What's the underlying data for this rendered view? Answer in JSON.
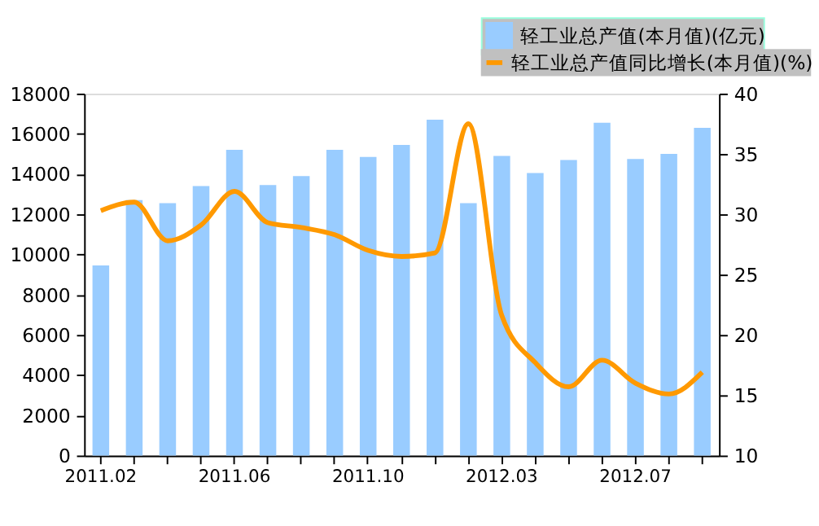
{
  "chart_data": {
    "type": "bar",
    "categories": [
      "2011.02",
      null,
      null,
      null,
      "2011.06",
      null,
      null,
      null,
      "2011.10",
      null,
      null,
      null,
      "2012.03",
      null,
      null,
      null,
      "2012.07",
      null,
      null
    ],
    "series": [
      {
        "name": "轻工业总产值(本月值)(亿元)",
        "color": "#99ccff",
        "values": [
          9450,
          12700,
          12550,
          13400,
          15200,
          13450,
          13900,
          15200,
          14850,
          15450,
          16700,
          12550,
          14900,
          14050,
          14700,
          16550,
          14750,
          15000,
          16300
        ]
      },
      {
        "name": "轻工业总产值同比增长(本月值)(%)",
        "type": "line",
        "axis": "y2",
        "color": "#ff9900",
        "values": [
          30.3,
          31.0,
          27.8,
          29.1,
          31.9,
          29.3,
          28.9,
          28.3,
          27.0,
          26.5,
          26.8,
          37.5,
          21.6,
          17.7,
          15.7,
          17.9,
          16.0,
          15.1,
          16.9
        ]
      }
    ],
    "ylim": [
      0,
      18000
    ],
    "yticks": [
      0,
      2000,
      4000,
      6000,
      8000,
      10000,
      12000,
      14000,
      16000,
      18000
    ],
    "y2lim": [
      10,
      40
    ],
    "y2ticks": [
      10,
      15,
      20,
      25,
      30,
      35,
      40
    ],
    "legend": "top right",
    "grid": false
  }
}
